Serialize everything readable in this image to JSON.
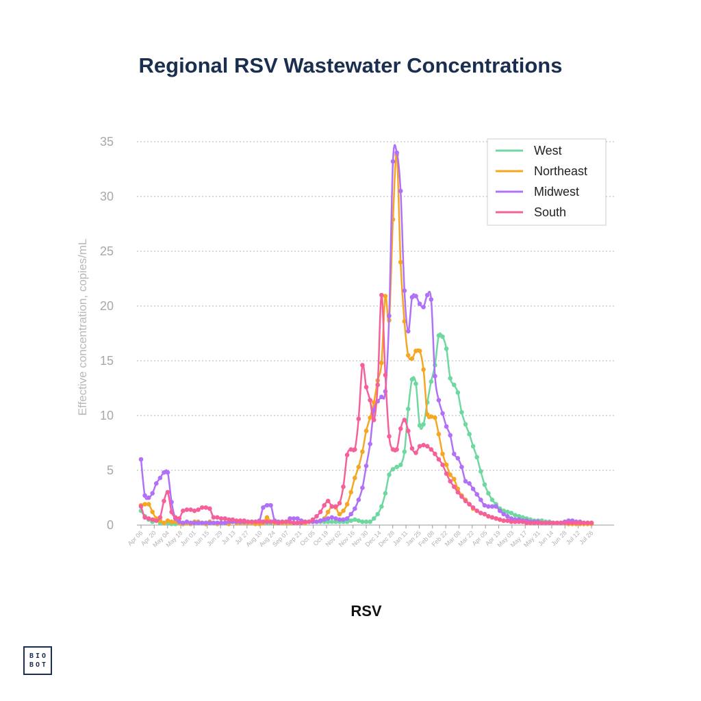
{
  "page": {
    "title": "Regional RSV Wastewater Concentrations",
    "caption": "RSV"
  },
  "logo": {
    "line1": "BIO",
    "line2": "BOT"
  },
  "chart_data": {
    "type": "line",
    "title": "Regional RSV Wastewater Concentrations",
    "xlabel": "RSV",
    "ylabel": "Effective concentration, copies/mL",
    "ylim": [
      0,
      35
    ],
    "yticks": [
      0,
      5,
      10,
      15,
      20,
      25,
      30,
      35
    ],
    "grid": "horizontal dotted",
    "legend": "top-right",
    "x_tick_labels": [
      "Apr 06",
      "Apr 20",
      "May 04",
      "May 18",
      "Jun 01",
      "Jun 15",
      "Jun 29",
      "Jul 13",
      "Jul 27",
      "Aug 10",
      "Aug 24",
      "Sep 07",
      "Sep 21",
      "Oct 05",
      "Oct 19",
      "Nov 02",
      "Nov 16",
      "Nov 30",
      "Dec 14",
      "Dec 28",
      "Jan 11",
      "Jan 25",
      "Feb 08",
      "Feb 22",
      "Mar 08",
      "Mar 22",
      "Apr 05",
      "Apr 19",
      "May 03",
      "May 17",
      "May 31",
      "Jun 14",
      "Jun 28",
      "Jul 12",
      "Jul 26"
    ],
    "series": [
      {
        "name": "West",
        "color": "#6ed8a0",
        "values": [
          1.3,
          0.8,
          0.5,
          0.3,
          0.4,
          0.2,
          0.2,
          0.2,
          0.1,
          0.1,
          0.2,
          0.2,
          0.2,
          0.2,
          0.2,
          0.2,
          0.2,
          0.2,
          0.2,
          0.2,
          0.2,
          0.2,
          0.2,
          0.3,
          0.3,
          0.3,
          0.3,
          0.3,
          0.3,
          0.3,
          0.3,
          0.2,
          0.2,
          0.2,
          0.2,
          0.2,
          0.2,
          0.2,
          0.2,
          0.2,
          0.2,
          0.2,
          0.2,
          0.2,
          0.3,
          0.3,
          0.3,
          0.3,
          0.3,
          0.3,
          0.3,
          0.3,
          0.3,
          0.3,
          0.3,
          0.4,
          0.5,
          0.4,
          0.3,
          0.3,
          0.3,
          0.6,
          1.0,
          1.7,
          2.9,
          4.6,
          5.1,
          5.3,
          5.5,
          6.7,
          10.6,
          13.3,
          12.9,
          9.1,
          9.2,
          11.2,
          13.1,
          14.6,
          17.3,
          17.2,
          16.1,
          13.4,
          12.8,
          12.1,
          10.3,
          9.2,
          8.3,
          7.2,
          6.2,
          4.9,
          3.7,
          2.9,
          2.3,
          1.9,
          1.5,
          1.3,
          1.2,
          1.1,
          0.9,
          0.8,
          0.7,
          0.6,
          0.5,
          0.4,
          0.4,
          0.4,
          0.3,
          0.3,
          0.2,
          0.2,
          0.2,
          0.2,
          0.2,
          0.2,
          0.2,
          0.2,
          0.2,
          0.2,
          0.2
        ]
      },
      {
        "name": "Northeast",
        "color": "#f5a623",
        "values": [
          1.8,
          1.9,
          1.9,
          1.2,
          0.6,
          0.4,
          0.2,
          0.4,
          0.3,
          0.3,
          0.2,
          0.1,
          0.2,
          0.1,
          0.3,
          0.3,
          0.2,
          0.1,
          0.3,
          0.2,
          0.1,
          0.2,
          0.2,
          0.1,
          0.3,
          0.2,
          0.2,
          0.2,
          0.2,
          0.2,
          0.1,
          0.1,
          0.2,
          0.7,
          0.3,
          0.2,
          0.2,
          0.2,
          0.2,
          0.2,
          0.2,
          0.2,
          0.2,
          0.2,
          0.3,
          0.3,
          0.3,
          0.4,
          0.6,
          1.2,
          1.7,
          1.6,
          1.0,
          1.3,
          1.9,
          3.0,
          4.3,
          5.3,
          6.7,
          8.6,
          9.8,
          11.2,
          13.2,
          14.8,
          20.9,
          18.7,
          27.9,
          33.8,
          24.0,
          18.6,
          15.5,
          15.2,
          15.9,
          15.9,
          14.2,
          10.1,
          9.9,
          9.8,
          8.3,
          6.5,
          5.5,
          4.6,
          4.2,
          3.3,
          2.7,
          2.3,
          1.9,
          1.5,
          1.3,
          1.1,
          1.0,
          0.8,
          0.7,
          0.6,
          0.5,
          0.4,
          0.4,
          0.5,
          0.5,
          0.4,
          0.3,
          0.2,
          0.2,
          0.2,
          0.2,
          0.2,
          0.2,
          0.2,
          0.2,
          0.2,
          0.2,
          0.2,
          0.1,
          0.1,
          0.1,
          0.1,
          0.1,
          0.1,
          0.1
        ]
      },
      {
        "name": "Midwest",
        "color": "#b070f7",
        "values": [
          6.0,
          2.7,
          2.5,
          2.9,
          3.8,
          4.3,
          4.8,
          4.8,
          2.1,
          0.6,
          0.3,
          0.2,
          0.3,
          0.2,
          0.2,
          0.2,
          0.2,
          0.2,
          0.2,
          0.2,
          0.2,
          0.2,
          0.2,
          0.3,
          0.3,
          0.3,
          0.3,
          0.3,
          0.3,
          0.3,
          0.3,
          0.4,
          1.6,
          1.8,
          1.8,
          0.4,
          0.3,
          0.3,
          0.3,
          0.6,
          0.6,
          0.6,
          0.4,
          0.3,
          0.3,
          0.3,
          0.3,
          0.4,
          0.5,
          0.6,
          0.7,
          0.6,
          0.5,
          0.5,
          0.6,
          1.0,
          1.5,
          2.3,
          3.4,
          5.4,
          7.4,
          10.5,
          11.3,
          11.7,
          12.2,
          19.1,
          33.2,
          34.0,
          30.5,
          21.4,
          17.7,
          20.8,
          20.9,
          20.2,
          19.9,
          21.0,
          20.6,
          13.6,
          11.4,
          10.2,
          9.0,
          8.2,
          6.5,
          6.1,
          5.3,
          4.0,
          3.8,
          3.3,
          2.8,
          2.3,
          1.8,
          1.7,
          1.7,
          1.7,
          1.3,
          1.0,
          0.8,
          0.6,
          0.5,
          0.5,
          0.4,
          0.4,
          0.3,
          0.3,
          0.3,
          0.2,
          0.2,
          0.2,
          0.2,
          0.2,
          0.2,
          0.3,
          0.4,
          0.4,
          0.3,
          0.3,
          0.2,
          0.2,
          0.2
        ]
      },
      {
        "name": "South",
        "color": "#f5609a",
        "values": [
          1.7,
          0.7,
          0.6,
          0.5,
          0.4,
          0.7,
          2.2,
          3.0,
          1.2,
          0.7,
          0.6,
          1.3,
          1.4,
          1.4,
          1.3,
          1.4,
          1.6,
          1.6,
          1.5,
          0.7,
          0.7,
          0.6,
          0.6,
          0.5,
          0.5,
          0.4,
          0.4,
          0.4,
          0.3,
          0.3,
          0.3,
          0.3,
          0.3,
          0.3,
          0.3,
          0.3,
          0.2,
          0.3,
          0.3,
          0.3,
          0.2,
          0.2,
          0.2,
          0.3,
          0.3,
          0.5,
          0.8,
          1.2,
          1.8,
          2.2,
          1.7,
          1.7,
          2.0,
          3.5,
          6.4,
          6.9,
          6.9,
          9.7,
          14.6,
          12.6,
          11.4,
          9.6,
          12.8,
          21.0,
          13.7,
          8.1,
          6.9,
          6.9,
          8.8,
          9.6,
          8.6,
          7.0,
          6.6,
          7.2,
          7.3,
          7.2,
          6.9,
          6.5,
          6.0,
          5.5,
          4.7,
          4.0,
          3.5,
          3.0,
          2.6,
          2.2,
          1.9,
          1.6,
          1.3,
          1.1,
          1.0,
          0.8,
          0.7,
          0.6,
          0.5,
          0.4,
          0.4,
          0.3,
          0.3,
          0.3,
          0.3,
          0.2,
          0.2,
          0.2,
          0.2,
          0.2,
          0.2,
          0.2,
          0.2,
          0.2,
          0.2,
          0.2,
          0.2,
          0.2,
          0.2,
          0.2,
          0.2,
          0.2,
          0.2
        ]
      }
    ]
  }
}
